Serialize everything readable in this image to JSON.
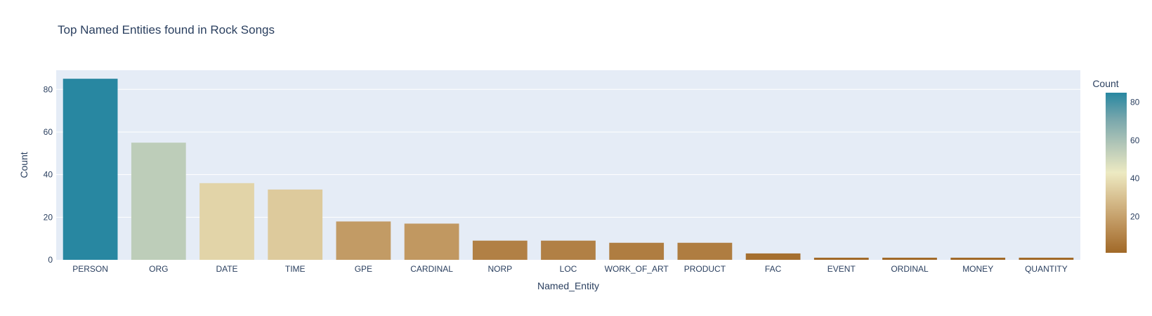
{
  "chart_data": {
    "type": "bar",
    "title": "Top Named Entities found in Rock Songs",
    "xlabel": "Named_Entity",
    "ylabel": "Count",
    "categories": [
      "PERSON",
      "ORG",
      "DATE",
      "TIME",
      "GPE",
      "CARDINAL",
      "NORP",
      "LOC",
      "WORK_OF_ART",
      "PRODUCT",
      "FAC",
      "EVENT",
      "ORDINAL",
      "MONEY",
      "QUANTITY"
    ],
    "values": [
      85,
      55,
      36,
      33,
      18,
      17,
      9,
      9,
      8,
      8,
      3,
      1,
      1,
      1,
      1
    ],
    "ylim": [
      0,
      89
    ],
    "yticks": [
      0,
      20,
      40,
      60,
      80
    ],
    "grid": true,
    "colorbar": {
      "title": "Count",
      "ticks": [
        20,
        40,
        60,
        80
      ],
      "range": [
        1,
        85
      ],
      "colorscale": [
        [
          0,
          "#a16928"
        ],
        [
          0.167,
          "#bd925a"
        ],
        [
          0.333,
          "#d6bd8d"
        ],
        [
          0.5,
          "#edeac2"
        ],
        [
          0.667,
          "#b5c8b8"
        ],
        [
          0.833,
          "#79a7ac"
        ],
        [
          1,
          "#2887a1"
        ]
      ]
    },
    "colors": {
      "plot_background": "#e5ecf6",
      "gridline": "#ffffff",
      "text": "#2a3f5f"
    }
  }
}
